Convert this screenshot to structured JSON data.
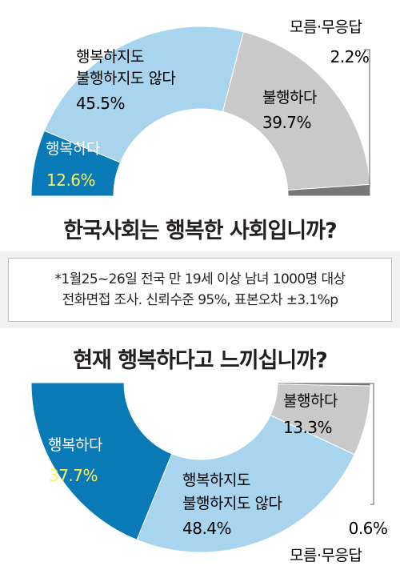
{
  "colors": {
    "happy": "#0a7ab7",
    "neutral": "#a8d4ee",
    "unhappy": "#c9c9c9",
    "unknown": "#777777",
    "label_highlight": "#fff35a"
  },
  "title1": "한국사회는 행복한 사회입니까?",
  "title2": "현재 행복하다고 느끼십니까?",
  "note": {
    "line1": "*1월25~26일 전국 만 19세 이상 남녀 1000명 대상",
    "line2": "전화면접 조사. 신뢰수준 95%, 표본오차 ±3.1%p"
  },
  "chart_data": [
    {
      "type": "pie",
      "title": "한국사회는 행복한 사회입니까?",
      "slices": [
        {
          "key": "happy",
          "label": "행복하다",
          "value": 12.6,
          "value_label": "12.6%"
        },
        {
          "key": "neutral",
          "label_lines": [
            "행복하지도",
            "불행하지도 않다"
          ],
          "value": 45.5,
          "value_label": "45.5%"
        },
        {
          "key": "unhappy",
          "label": "불행하다",
          "value": 39.7,
          "value_label": "39.7%"
        },
        {
          "key": "unknown",
          "label": "모름·무응답",
          "value": 2.2,
          "value_label": "2.2%"
        }
      ]
    },
    {
      "type": "pie",
      "title": "현재 행복하다고 느끼십니까?",
      "slices": [
        {
          "key": "happy",
          "label": "행복하다",
          "value": 37.7,
          "value_label": "37.7%"
        },
        {
          "key": "neutral",
          "label_lines": [
            "행복하지도",
            "불행하지도 않다"
          ],
          "value": 48.4,
          "value_label": "48.4%"
        },
        {
          "key": "unhappy",
          "label": "불행하다",
          "value": 13.3,
          "value_label": "13.3%"
        },
        {
          "key": "unknown",
          "label": "모름·무응답",
          "value": 0.6,
          "value_label": "0.6%"
        }
      ]
    }
  ]
}
